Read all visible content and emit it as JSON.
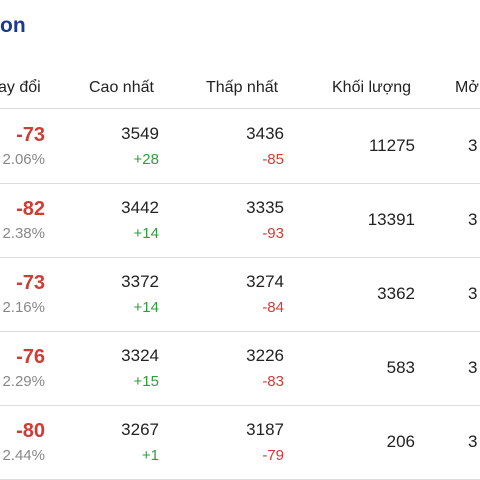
{
  "title_fragment": "on",
  "headers": {
    "change": "ay đổi",
    "high": "Cao nhất",
    "low": "Thấp nhất",
    "volume": "Khối lượng",
    "open": "Mở"
  },
  "rows": [
    {
      "change": "-73",
      "pct": "2.06%",
      "high": "3549",
      "high_delta": "+28",
      "low": "3436",
      "low_delta": "-85",
      "volume": "11275",
      "open": "3"
    },
    {
      "change": "-82",
      "pct": "2.38%",
      "high": "3442",
      "high_delta": "+14",
      "low": "3335",
      "low_delta": "-93",
      "volume": "13391",
      "open": "3"
    },
    {
      "change": "-73",
      "pct": "2.16%",
      "high": "3372",
      "high_delta": "+14",
      "low": "3274",
      "low_delta": "-84",
      "volume": "3362",
      "open": "3"
    },
    {
      "change": "-76",
      "pct": "2.29%",
      "high": "3324",
      "high_delta": "+15",
      "low": "3226",
      "low_delta": "-83",
      "volume": "583",
      "open": "3"
    },
    {
      "change": "-80",
      "pct": "2.44%",
      "high": "3267",
      "high_delta": "+1",
      "low": "3187",
      "low_delta": "-79",
      "volume": "206",
      "open": "3"
    }
  ],
  "colors": {
    "title": "#1a3a8c",
    "negative": "#d13b32",
    "positive": "#2e9e3e",
    "muted": "#888888",
    "divider": "#dcdcdc"
  }
}
